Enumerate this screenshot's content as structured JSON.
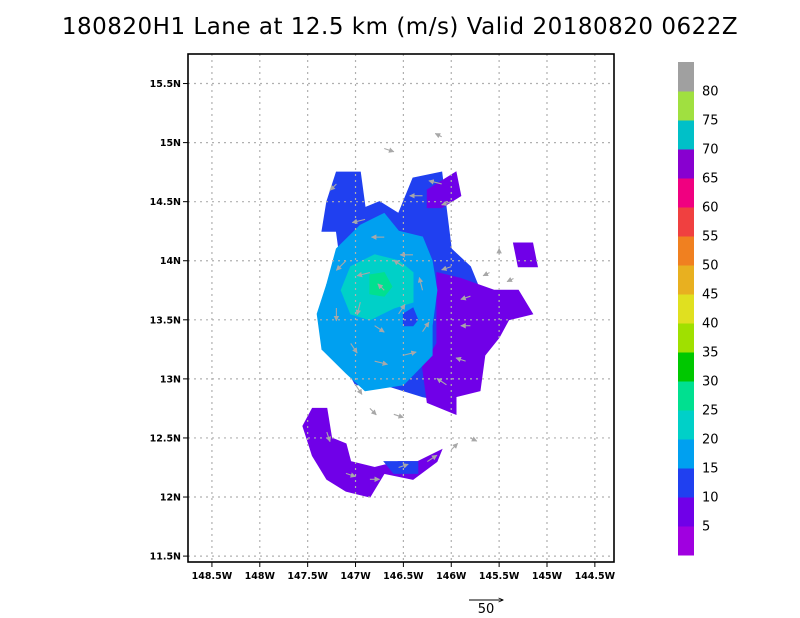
{
  "chart_data": {
    "type": "heatmap",
    "title": "180820H1 Lane at 12.5 km (m/s) Valid 20180820  0622Z",
    "x_ticks": [
      "148.5W",
      "148W",
      "147.5W",
      "147W",
      "146.5W",
      "146W",
      "145.5W",
      "145W",
      "144.5W"
    ],
    "x_values": [
      -148.5,
      -148,
      -147.5,
      -147,
      -146.5,
      -146,
      -145.5,
      -145,
      -144.5
    ],
    "y_ticks": [
      "11.5N",
      "12N",
      "12.5N",
      "13N",
      "13.5N",
      "14N",
      "14.5N",
      "15N",
      "15.5N"
    ],
    "y_values": [
      11.5,
      12,
      12.5,
      13,
      13.5,
      14,
      14.5,
      15,
      15.5
    ],
    "xlim": [
      -148.75,
      -144.3
    ],
    "ylim": [
      11.45,
      15.75
    ],
    "grid": true,
    "colorbar": {
      "labels": [
        "5",
        "10",
        "15",
        "20",
        "25",
        "30",
        "35",
        "40",
        "45",
        "50",
        "55",
        "60",
        "65",
        "70",
        "75",
        "80"
      ],
      "bins": [
        {
          "range": [
            0,
            5
          ],
          "color": "#a000e0"
        },
        {
          "range": [
            5,
            10
          ],
          "color": "#7000e8"
        },
        {
          "range": [
            10,
            15
          ],
          "color": "#2040f0"
        },
        {
          "range": [
            15,
            20
          ],
          "color": "#00a0f0"
        },
        {
          "range": [
            20,
            25
          ],
          "color": "#00d0c8"
        },
        {
          "range": [
            25,
            30
          ],
          "color": "#00e090"
        },
        {
          "range": [
            30,
            35
          ],
          "color": "#00c800"
        },
        {
          "range": [
            35,
            40
          ],
          "color": "#a0e000"
        },
        {
          "range": [
            40,
            45
          ],
          "color": "#e0e020"
        },
        {
          "range": [
            45,
            50
          ],
          "color": "#e8b020"
        },
        {
          "range": [
            50,
            55
          ],
          "color": "#f08020"
        },
        {
          "range": [
            55,
            60
          ],
          "color": "#f04040"
        },
        {
          "range": [
            60,
            65
          ],
          "color": "#f00080"
        },
        {
          "range": [
            65,
            70
          ],
          "color": "#8800d0"
        },
        {
          "range": [
            70,
            75
          ],
          "color": "#00c0c8"
        },
        {
          "range": [
            75,
            80
          ],
          "color": "#a0e040"
        },
        {
          "range": [
            80,
            85
          ],
          "color": "#a0a0a0"
        }
      ]
    },
    "wind_regions": [
      {
        "level": "10-15",
        "color": "#2040f0",
        "poly": [
          [
            -147.2,
            14.75
          ],
          [
            -146.95,
            14.75
          ],
          [
            -146.9,
            14.45
          ],
          [
            -146.75,
            14.5
          ],
          [
            -146.55,
            14.4
          ],
          [
            -146.4,
            14.7
          ],
          [
            -146.1,
            14.75
          ],
          [
            -146.0,
            14.1
          ],
          [
            -145.8,
            13.95
          ],
          [
            -145.7,
            13.75
          ],
          [
            -145.65,
            13.3
          ],
          [
            -145.75,
            13.0
          ],
          [
            -145.9,
            12.9
          ],
          [
            -146.0,
            12.8
          ],
          [
            -146.3,
            12.85
          ],
          [
            -146.7,
            12.95
          ],
          [
            -147.0,
            12.95
          ],
          [
            -147.1,
            13.1
          ],
          [
            -147.35,
            13.25
          ],
          [
            -147.3,
            13.8
          ],
          [
            -147.15,
            13.95
          ],
          [
            -147.2,
            14.25
          ],
          [
            -147.35,
            14.25
          ],
          [
            -147.3,
            14.5
          ]
        ]
      },
      {
        "level": "5-10",
        "color": "#7000e8",
        "poly": [
          [
            -146.25,
            14.6
          ],
          [
            -145.95,
            14.75
          ],
          [
            -145.9,
            14.55
          ],
          [
            -146.1,
            14.45
          ],
          [
            -146.25,
            14.45
          ]
        ]
      },
      {
        "level": "5-10",
        "color": "#7000e8",
        "poly": [
          [
            -146.15,
            13.9
          ],
          [
            -145.9,
            13.85
          ],
          [
            -145.55,
            13.75
          ],
          [
            -145.3,
            13.75
          ],
          [
            -145.15,
            13.55
          ],
          [
            -145.4,
            13.5
          ],
          [
            -145.5,
            13.35
          ],
          [
            -145.65,
            13.2
          ],
          [
            -145.7,
            12.9
          ],
          [
            -145.95,
            12.85
          ],
          [
            -145.95,
            12.7
          ],
          [
            -146.25,
            12.8
          ],
          [
            -146.3,
            13.1
          ],
          [
            -146.15,
            13.3
          ],
          [
            -146.15,
            13.6
          ]
        ]
      },
      {
        "level": "5-10",
        "color": "#7000e8",
        "poly": [
          [
            -145.35,
            14.15
          ],
          [
            -145.15,
            14.15
          ],
          [
            -145.1,
            13.95
          ],
          [
            -145.3,
            13.95
          ]
        ]
      },
      {
        "level": "15-20",
        "color": "#00a0f0",
        "poly": [
          [
            -147.2,
            14.1
          ],
          [
            -146.95,
            14.3
          ],
          [
            -146.7,
            14.4
          ],
          [
            -146.55,
            14.25
          ],
          [
            -146.3,
            14.2
          ],
          [
            -146.2,
            14.0
          ],
          [
            -146.15,
            13.75
          ],
          [
            -146.2,
            13.45
          ],
          [
            -146.2,
            13.2
          ],
          [
            -146.5,
            12.95
          ],
          [
            -146.9,
            12.9
          ],
          [
            -147.1,
            13.05
          ],
          [
            -147.35,
            13.25
          ],
          [
            -147.4,
            13.55
          ],
          [
            -147.3,
            13.8
          ]
        ]
      },
      {
        "level": "20-25",
        "color": "#00d0c8",
        "poly": [
          [
            -147.05,
            13.95
          ],
          [
            -146.8,
            14.05
          ],
          [
            -146.55,
            14.0
          ],
          [
            -146.4,
            13.9
          ],
          [
            -146.4,
            13.65
          ],
          [
            -146.6,
            13.6
          ],
          [
            -146.85,
            13.5
          ],
          [
            -147.05,
            13.55
          ],
          [
            -147.15,
            13.75
          ]
        ]
      },
      {
        "level": "25-30",
        "color": "#00e090",
        "poly": [
          [
            -146.85,
            13.88
          ],
          [
            -146.7,
            13.9
          ],
          [
            -146.62,
            13.78
          ],
          [
            -146.7,
            13.7
          ],
          [
            -146.85,
            13.72
          ]
        ]
      },
      {
        "level": "10-15",
        "color": "#2040f0",
        "poly": [
          [
            -146.5,
            13.55
          ],
          [
            -146.4,
            13.6
          ],
          [
            -146.35,
            13.5
          ],
          [
            -146.4,
            13.45
          ],
          [
            -146.5,
            13.45
          ]
        ]
      },
      {
        "level": "5-10",
        "color": "#7000e8",
        "poly": [
          [
            -147.45,
            12.75
          ],
          [
            -147.3,
            12.75
          ],
          [
            -147.25,
            12.5
          ],
          [
            -147.1,
            12.45
          ],
          [
            -147.05,
            12.3
          ],
          [
            -146.8,
            12.25
          ],
          [
            -146.55,
            12.3
          ],
          [
            -146.35,
            12.3
          ],
          [
            -146.1,
            12.4
          ],
          [
            -146.15,
            12.3
          ],
          [
            -146.4,
            12.15
          ],
          [
            -146.7,
            12.2
          ],
          [
            -146.85,
            12.0
          ],
          [
            -147.1,
            12.05
          ],
          [
            -147.3,
            12.15
          ],
          [
            -147.45,
            12.35
          ],
          [
            -147.55,
            12.6
          ]
        ]
      },
      {
        "level": "10-15",
        "color": "#2040f0",
        "poly": [
          [
            -146.7,
            12.3
          ],
          [
            -146.35,
            12.3
          ],
          [
            -146.35,
            12.2
          ],
          [
            -146.6,
            12.2
          ]
        ]
      }
    ],
    "arrows": [
      {
        "lon": -146.7,
        "lat": 14.95,
        "u": 3,
        "v": -1
      },
      {
        "lon": -146.3,
        "lat": 14.55,
        "u": -4,
        "v": 0
      },
      {
        "lon": -146.0,
        "lat": 14.5,
        "u": -3,
        "v": -1
      },
      {
        "lon": -147.2,
        "lat": 14.65,
        "u": -2,
        "v": -2
      },
      {
        "lon": -146.1,
        "lat": 15.05,
        "u": -2,
        "v": 1
      },
      {
        "lon": -146.1,
        "lat": 14.65,
        "u": -4,
        "v": 1
      },
      {
        "lon": -146.9,
        "lat": 14.35,
        "u": -4,
        "v": -1
      },
      {
        "lon": -146.7,
        "lat": 14.2,
        "u": -4,
        "v": 0
      },
      {
        "lon": -146.4,
        "lat": 14.05,
        "u": -4,
        "v": 0
      },
      {
        "lon": -147.1,
        "lat": 14.0,
        "u": -3,
        "v": -3
      },
      {
        "lon": -147.2,
        "lat": 13.6,
        "u": 0,
        "v": -4
      },
      {
        "lon": -147.05,
        "lat": 13.3,
        "u": 2,
        "v": -3
      },
      {
        "lon": -146.8,
        "lat": 13.15,
        "u": 4,
        "v": -1
      },
      {
        "lon": -146.5,
        "lat": 13.2,
        "u": 4,
        "v": 1
      },
      {
        "lon": -146.3,
        "lat": 13.4,
        "u": 2,
        "v": 3
      },
      {
        "lon": -146.3,
        "lat": 13.75,
        "u": -1,
        "v": 4
      },
      {
        "lon": -146.5,
        "lat": 13.95,
        "u": -3,
        "v": 2
      },
      {
        "lon": -146.85,
        "lat": 13.9,
        "u": -4,
        "v": -1
      },
      {
        "lon": -146.95,
        "lat": 13.65,
        "u": -1,
        "v": -4
      },
      {
        "lon": -146.8,
        "lat": 13.45,
        "u": 3,
        "v": -2
      },
      {
        "lon": -146.55,
        "lat": 13.55,
        "u": 2,
        "v": 3
      },
      {
        "lon": -146.7,
        "lat": 13.75,
        "u": -2,
        "v": 2
      },
      {
        "lon": -146.0,
        "lat": 13.95,
        "u": -3,
        "v": -1
      },
      {
        "lon": -145.8,
        "lat": 13.7,
        "u": -3,
        "v": -1
      },
      {
        "lon": -145.8,
        "lat": 13.45,
        "u": -3,
        "v": 0
      },
      {
        "lon": -145.85,
        "lat": 13.15,
        "u": -3,
        "v": 1
      },
      {
        "lon": -146.05,
        "lat": 12.95,
        "u": -3,
        "v": 2
      },
      {
        "lon": -145.6,
        "lat": 13.9,
        "u": -2,
        "v": -1
      },
      {
        "lon": -145.35,
        "lat": 13.85,
        "u": -2,
        "v": -1
      },
      {
        "lon": -145.5,
        "lat": 14.05,
        "u": 0,
        "v": 2
      },
      {
        "lon": -147.0,
        "lat": 12.95,
        "u": 2,
        "v": -3
      },
      {
        "lon": -146.85,
        "lat": 12.75,
        "u": 2,
        "v": -2
      },
      {
        "lon": -146.6,
        "lat": 12.7,
        "u": 3,
        "v": -1
      },
      {
        "lon": -145.8,
        "lat": 12.5,
        "u": 2,
        "v": -1
      },
      {
        "lon": -147.3,
        "lat": 12.55,
        "u": 1,
        "v": -3
      },
      {
        "lon": -147.1,
        "lat": 12.2,
        "u": 3,
        "v": -1
      },
      {
        "lon": -146.85,
        "lat": 12.15,
        "u": 3,
        "v": 0
      },
      {
        "lon": -146.55,
        "lat": 12.25,
        "u": 3,
        "v": 1
      },
      {
        "lon": -146.25,
        "lat": 12.3,
        "u": 3,
        "v": 2
      },
      {
        "lon": -146.0,
        "lat": 12.4,
        "u": 2,
        "v": 2
      }
    ],
    "vector_scale": {
      "label": "50"
    }
  }
}
